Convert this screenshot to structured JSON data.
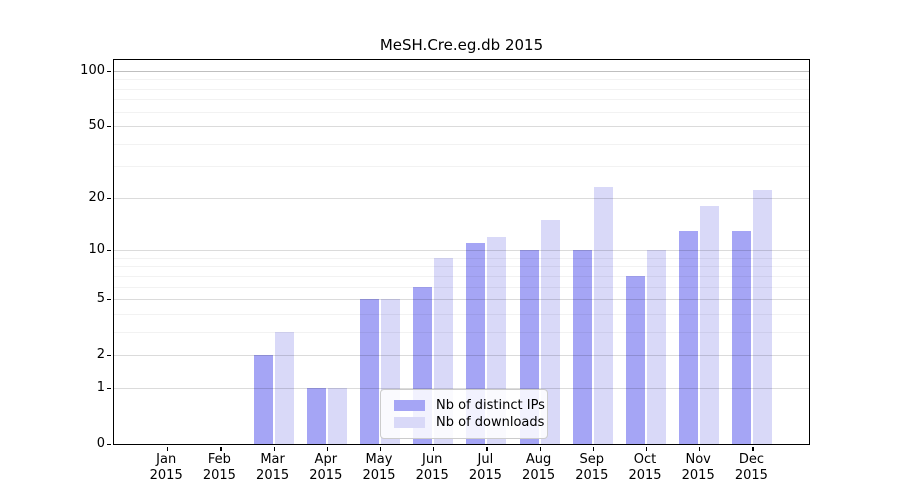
{
  "chart_data": {
    "type": "bar",
    "title": "MeSH.Cre.eg.db 2015",
    "year_label": "2015",
    "categories": [
      "Jan",
      "Feb",
      "Mar",
      "Apr",
      "May",
      "Jun",
      "Jul",
      "Aug",
      "Sep",
      "Oct",
      "Nov",
      "Dec"
    ],
    "series": [
      {
        "name": "Nb of distinct IPs",
        "color": "#a5a5f5",
        "values": [
          0,
          0,
          2,
          1,
          5,
          6,
          11,
          10,
          10,
          7,
          13,
          13
        ]
      },
      {
        "name": "Nb of downloads",
        "color": "#d9d9f8",
        "values": [
          0,
          0,
          3,
          1,
          5,
          9,
          12,
          15,
          23,
          10,
          18,
          22
        ]
      }
    ],
    "yscale": "log1p",
    "yticks": [
      0,
      1,
      2,
      5,
      10,
      20,
      50,
      100
    ],
    "yticks_minor": [
      3,
      4,
      6,
      7,
      8,
      9,
      30,
      40,
      60,
      70,
      80,
      90
    ],
    "ylim": [
      0,
      116
    ],
    "xlabel": "",
    "ylabel": "",
    "grid": "horizontal",
    "legend_position": "lower-center"
  }
}
